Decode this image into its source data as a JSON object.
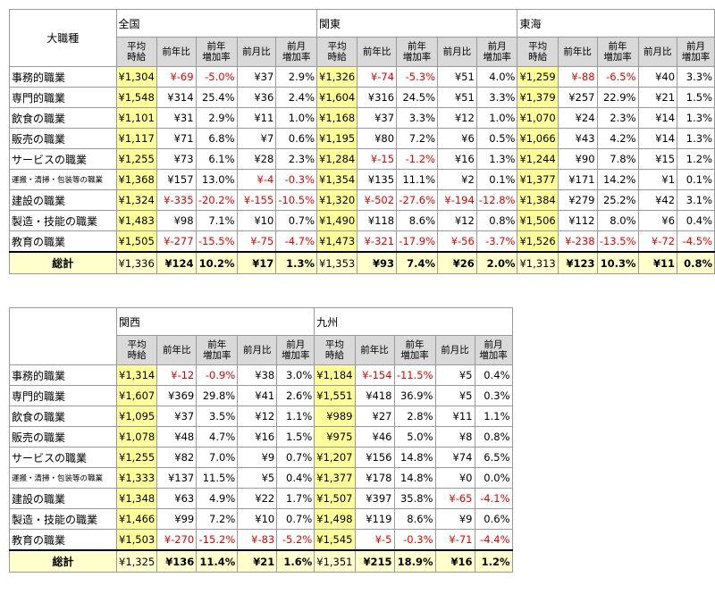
{
  "tables": [
    {
      "corner": "大職種",
      "regions": [
        "全国",
        "関東",
        "東海"
      ],
      "columns": [
        "平均\n時給",
        "前年比",
        "前年\n増加率",
        "前月比",
        "前月\n増加率"
      ],
      "rows": [
        {
          "label": "事務的職業",
          "cells": [
            "¥1,304",
            "¥-69",
            "-5.0%",
            "¥37",
            "2.9%",
            "¥1,326",
            "¥-74",
            "-5.3%",
            "¥51",
            "4.0%",
            "¥1,259",
            "¥-88",
            "-6.5%",
            "¥40",
            "3.3%"
          ]
        },
        {
          "label": "専門的職業",
          "cells": [
            "¥1,548",
            "¥314",
            "25.4%",
            "¥36",
            "2.4%",
            "¥1,604",
            "¥316",
            "24.5%",
            "¥51",
            "3.3%",
            "¥1,379",
            "¥257",
            "22.9%",
            "¥21",
            "1.5%"
          ]
        },
        {
          "label": "飲食の職業",
          "cells": [
            "¥1,101",
            "¥31",
            "2.9%",
            "¥11",
            "1.0%",
            "¥1,168",
            "¥37",
            "3.3%",
            "¥12",
            "1.0%",
            "¥1,070",
            "¥24",
            "2.3%",
            "¥14",
            "1.3%"
          ]
        },
        {
          "label": "販売の職業",
          "cells": [
            "¥1,117",
            "¥71",
            "6.8%",
            "¥7",
            "0.6%",
            "¥1,195",
            "¥80",
            "7.2%",
            "¥6",
            "0.5%",
            "¥1,066",
            "¥43",
            "4.2%",
            "¥14",
            "1.3%"
          ]
        },
        {
          "label": "サービスの職業",
          "cells": [
            "¥1,255",
            "¥73",
            "6.1%",
            "¥28",
            "2.3%",
            "¥1,284",
            "¥-15",
            "-1.2%",
            "¥16",
            "1.3%",
            "¥1,244",
            "¥90",
            "7.8%",
            "¥15",
            "1.2%"
          ]
        },
        {
          "label": "運搬・清掃・包装等の職業",
          "cells": [
            "¥1,368",
            "¥157",
            "13.0%",
            "¥-4",
            "-0.3%",
            "¥1,354",
            "¥135",
            "11.1%",
            "¥2",
            "0.1%",
            "¥1,377",
            "¥171",
            "14.2%",
            "¥1",
            "0.1%"
          ]
        },
        {
          "label": "建設の職業",
          "cells": [
            "¥1,324",
            "¥-335",
            "-20.2%",
            "¥-155",
            "-10.5%",
            "¥1,320",
            "¥-502",
            "-27.6%",
            "¥-194",
            "-12.8%",
            "¥1,384",
            "¥279",
            "25.2%",
            "¥42",
            "3.1%"
          ]
        },
        {
          "label": "製造・技能の職業",
          "cells": [
            "¥1,483",
            "¥98",
            "7.1%",
            "¥10",
            "0.7%",
            "¥1,490",
            "¥118",
            "8.6%",
            "¥12",
            "0.8%",
            "¥1,506",
            "¥112",
            "8.0%",
            "¥6",
            "0.4%"
          ]
        },
        {
          "label": "教育の職業",
          "cells": [
            "¥1,505",
            "¥-277",
            "-15.5%",
            "¥-75",
            "-4.7%",
            "¥1,473",
            "¥-321",
            "-17.9%",
            "¥-56",
            "-3.7%",
            "¥1,526",
            "¥-238",
            "-13.5%",
            "¥-72",
            "-4.5%"
          ]
        }
      ],
      "total": {
        "label": "総計",
        "cells": [
          "¥1,336",
          "¥124",
          "10.2%",
          "¥17",
          "1.3%",
          "¥1,353",
          "¥93",
          "7.4%",
          "¥26",
          "2.0%",
          "¥1,313",
          "¥123",
          "10.3%",
          "¥11",
          "0.8%"
        ]
      }
    },
    {
      "regions": [
        "関西",
        "九州"
      ],
      "columns": [
        "平均\n時給",
        "前年比",
        "前年\n増加率",
        "前月比",
        "前月\n増加率"
      ],
      "rows": [
        {
          "label": "事務的職業",
          "cells": [
            "¥1,314",
            "¥-12",
            "-0.9%",
            "¥38",
            "3.0%",
            "¥1,184",
            "¥-154",
            "-11.5%",
            "¥5",
            "0.4%"
          ]
        },
        {
          "label": "専門的職業",
          "cells": [
            "¥1,607",
            "¥369",
            "29.8%",
            "¥41",
            "2.6%",
            "¥1,551",
            "¥418",
            "36.9%",
            "¥5",
            "0.3%"
          ]
        },
        {
          "label": "飲食の職業",
          "cells": [
            "¥1,095",
            "¥37",
            "3.5%",
            "¥12",
            "1.1%",
            "¥989",
            "¥27",
            "2.8%",
            "¥11",
            "1.1%"
          ]
        },
        {
          "label": "販売の職業",
          "cells": [
            "¥1,078",
            "¥48",
            "4.7%",
            "¥16",
            "1.5%",
            "¥975",
            "¥46",
            "5.0%",
            "¥8",
            "0.8%"
          ]
        },
        {
          "label": "サービスの職業",
          "cells": [
            "¥1,255",
            "¥82",
            "7.0%",
            "¥9",
            "0.7%",
            "¥1,207",
            "¥156",
            "14.8%",
            "¥74",
            "6.5%"
          ]
        },
        {
          "label": "運搬・清掃・包装等の職業",
          "cells": [
            "¥1,333",
            "¥137",
            "11.5%",
            "¥5",
            "0.4%",
            "¥1,377",
            "¥178",
            "14.8%",
            "¥0",
            "0.0%"
          ]
        },
        {
          "label": "建設の職業",
          "cells": [
            "¥1,348",
            "¥63",
            "4.9%",
            "¥22",
            "1.7%",
            "¥1,507",
            "¥397",
            "35.8%",
            "¥-65",
            "-4.1%"
          ]
        },
        {
          "label": "製造・技能の職業",
          "cells": [
            "¥1,466",
            "¥99",
            "7.2%",
            "¥10",
            "0.7%",
            "¥1,498",
            "¥119",
            "8.6%",
            "¥9",
            "0.6%"
          ]
        },
        {
          "label": "教育の職業",
          "cells": [
            "¥1,503",
            "¥-270",
            "-15.2%",
            "¥-83",
            "-5.2%",
            "¥1,545",
            "¥-5",
            "-0.3%",
            "¥-71",
            "-4.4%"
          ]
        }
      ],
      "total": {
        "label": "総計",
        "cells": [
          "¥1,325",
          "¥136",
          "11.4%",
          "¥21",
          "1.6%",
          "¥1,351",
          "¥215",
          "18.9%",
          "¥16",
          "1.2%"
        ]
      }
    }
  ]
}
